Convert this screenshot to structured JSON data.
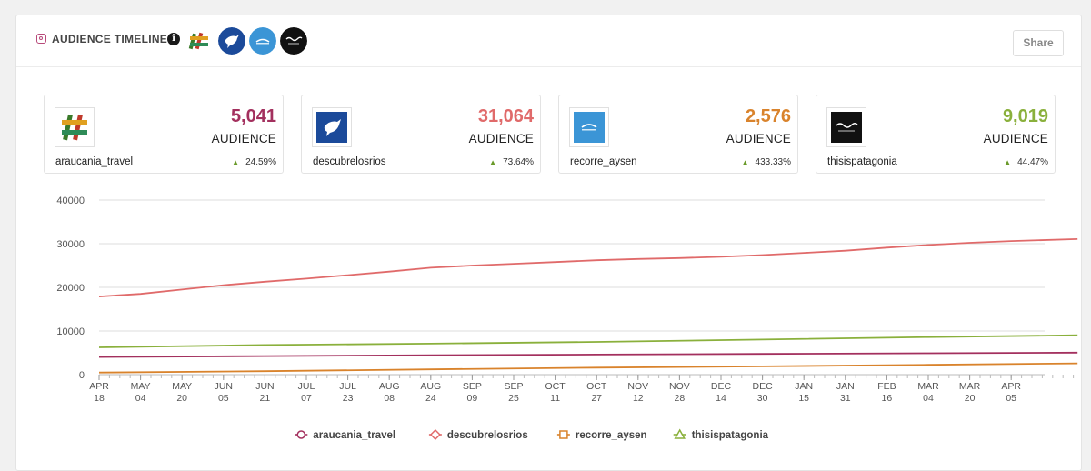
{
  "header": {
    "title": "AUDIENCE TIMELINE",
    "share_label": "Share"
  },
  "icons": {
    "instagram": "instagram-icon",
    "info": "info-icon"
  },
  "accounts": [
    {
      "handle": "araucania_travel",
      "audience": "5,041",
      "label": "AUDIENCE",
      "change": "24.59%",
      "color": "#a3305e",
      "avatar": "araucania-logo-icon"
    },
    {
      "handle": "descubrelosrios",
      "audience": "31,064",
      "label": "AUDIENCE",
      "change": "73.64%",
      "color": "#e06a6a",
      "avatar": "bird-logo-icon"
    },
    {
      "handle": "recorre_aysen",
      "audience": "2,576",
      "label": "AUDIENCE",
      "change": "433.33%",
      "color": "#d9832c",
      "avatar": "aysen-logo-icon"
    },
    {
      "handle": "thisispatagonia",
      "audience": "9,019",
      "label": "AUDIENCE",
      "change": "44.47%",
      "color": "#8ab03c",
      "avatar": "patagonia-logo-icon"
    }
  ],
  "chart_data": {
    "type": "line",
    "title": "",
    "xlabel": "",
    "ylabel": "",
    "ylim": [
      0,
      40000
    ],
    "yticks": [
      0,
      10000,
      20000,
      30000,
      40000
    ],
    "grid": true,
    "legend_position": "bottom",
    "x_ticks": [
      [
        "APR",
        "18"
      ],
      [
        "MAY",
        "04"
      ],
      [
        "MAY",
        "20"
      ],
      [
        "JUN",
        "05"
      ],
      [
        "JUN",
        "21"
      ],
      [
        "JUL",
        "07"
      ],
      [
        "JUL",
        "23"
      ],
      [
        "AUG",
        "08"
      ],
      [
        "AUG",
        "24"
      ],
      [
        "SEP",
        "09"
      ],
      [
        "SEP",
        "25"
      ],
      [
        "OCT",
        "11"
      ],
      [
        "OCT",
        "27"
      ],
      [
        "NOV",
        "12"
      ],
      [
        "NOV",
        "28"
      ],
      [
        "DEC",
        "14"
      ],
      [
        "DEC",
        "30"
      ],
      [
        "JAN",
        "15"
      ],
      [
        "JAN",
        "31"
      ],
      [
        "FEB",
        "16"
      ],
      [
        "MAR",
        "04"
      ],
      [
        "MAR",
        "20"
      ],
      [
        "APR",
        "05"
      ]
    ],
    "x_extent_ticks": 23.6,
    "series": [
      {
        "name": "araucania_travel",
        "color": "#a3305e",
        "marker": "circle",
        "points": [
          [
            0,
            4050
          ],
          [
            4,
            4250
          ],
          [
            8,
            4450
          ],
          [
            12,
            4600
          ],
          [
            16,
            4750
          ],
          [
            20,
            4900
          ],
          [
            23.6,
            5041
          ]
        ]
      },
      {
        "name": "descubrelosrios",
        "color": "#e06a6a",
        "marker": "diamond",
        "points": [
          [
            0,
            17900
          ],
          [
            1,
            18500
          ],
          [
            2,
            19500
          ],
          [
            3,
            20500
          ],
          [
            4,
            21300
          ],
          [
            5,
            22000
          ],
          [
            6,
            22800
          ],
          [
            7,
            23600
          ],
          [
            8,
            24500
          ],
          [
            9,
            25000
          ],
          [
            10,
            25400
          ],
          [
            11,
            25800
          ],
          [
            12,
            26200
          ],
          [
            13,
            26500
          ],
          [
            14,
            26700
          ],
          [
            15,
            27000
          ],
          [
            16,
            27400
          ],
          [
            17,
            27900
          ],
          [
            18,
            28400
          ],
          [
            19,
            29100
          ],
          [
            20,
            29700
          ],
          [
            21,
            30200
          ],
          [
            22,
            30600
          ],
          [
            23.6,
            31064
          ]
        ]
      },
      {
        "name": "recorre_aysen",
        "color": "#d9832c",
        "marker": "square",
        "points": [
          [
            0,
            480
          ],
          [
            4,
            800
          ],
          [
            8,
            1200
          ],
          [
            12,
            1600
          ],
          [
            16,
            1900
          ],
          [
            20,
            2250
          ],
          [
            23.6,
            2576
          ]
        ]
      },
      {
        "name": "thisispatagonia",
        "color": "#8ab03c",
        "marker": "triangle",
        "points": [
          [
            0,
            6250
          ],
          [
            4,
            6800
          ],
          [
            8,
            7100
          ],
          [
            12,
            7500
          ],
          [
            16,
            8050
          ],
          [
            20,
            8600
          ],
          [
            23.6,
            9019
          ]
        ]
      }
    ]
  }
}
